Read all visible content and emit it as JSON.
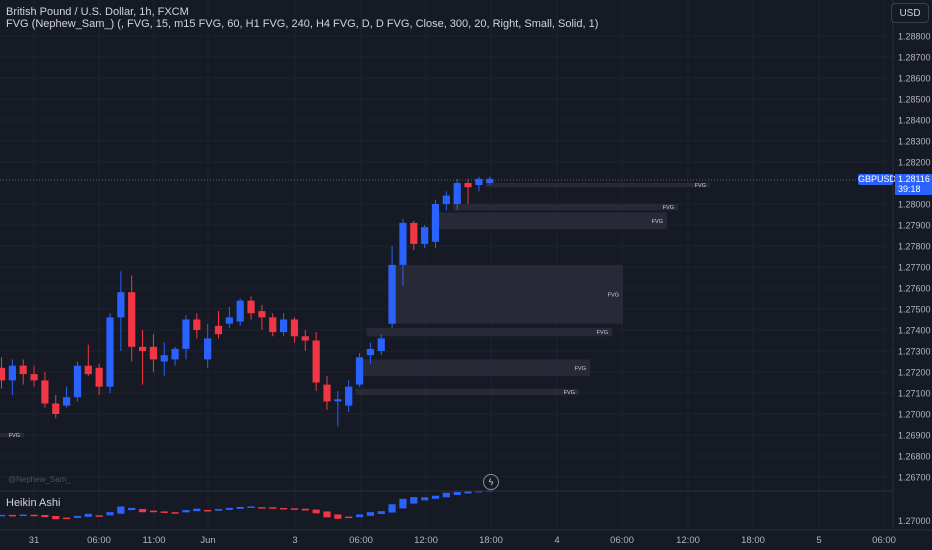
{
  "header": {
    "symbol_title": "British Pound / U.S. Dollar, 1h, FXCM",
    "indicator_legend": "FVG (Nephew_Sam_) (, FVG, 15, m15 FVG, 60, H1 FVG, 240, H4 FVG, D, D FVG, Close, 300, 20, Right, Small, Solid, 1)",
    "currency_button": "USD"
  },
  "price_scale": {
    "ticks": [
      "1.28800",
      "1.28700",
      "1.28600",
      "1.28500",
      "1.28400",
      "1.28300",
      "1.28200",
      "1.28000",
      "1.27900",
      "1.27800",
      "1.27700",
      "1.27600",
      "1.27500",
      "1.27400",
      "1.27300",
      "1.27200",
      "1.27100",
      "1.27000",
      "1.26900",
      "1.26800",
      "1.26700"
    ],
    "symbol_badge": "GBPUSD",
    "last_price": "1.28116",
    "countdown": "39:18",
    "sub_tick": "1.27000"
  },
  "time_axis": {
    "labels": [
      "31",
      "06:00",
      "11:00",
      "Jun",
      "3",
      "06:00",
      "12:00",
      "18:00",
      "4",
      "06:00",
      "12:00",
      "18:00",
      "5",
      "06:00"
    ]
  },
  "subchart": {
    "title": "Heikin Ashi"
  },
  "watermark": "@Nephew_Sam_",
  "fvg_label": "FVG",
  "colors": {
    "background": "#161a25",
    "bull": "#2962ff",
    "bear": "#f23645",
    "fvg_zone": "#2a2e39",
    "grid": "#1e2230"
  },
  "chart_data": {
    "type": "candlestick",
    "symbol": "GBPUSD",
    "timeframe": "1h",
    "y_range": [
      1.2665,
      1.2895
    ],
    "candles": [
      {
        "o": 1.2722,
        "h": 1.2727,
        "l": 1.2712,
        "c": 1.2716
      },
      {
        "o": 1.2716,
        "h": 1.2726,
        "l": 1.2709,
        "c": 1.2723
      },
      {
        "o": 1.2723,
        "h": 1.2726,
        "l": 1.2714,
        "c": 1.2719
      },
      {
        "o": 1.2719,
        "h": 1.2723,
        "l": 1.2713,
        "c": 1.2716
      },
      {
        "o": 1.2716,
        "h": 1.272,
        "l": 1.2703,
        "c": 1.2705
      },
      {
        "o": 1.2705,
        "h": 1.2709,
        "l": 1.2698,
        "c": 1.27
      },
      {
        "o": 1.2704,
        "h": 1.2713,
        "l": 1.2703,
        "c": 1.2708
      },
      {
        "o": 1.2708,
        "h": 1.2725,
        "l": 1.2706,
        "c": 1.2723
      },
      {
        "o": 1.2723,
        "h": 1.2733,
        "l": 1.2718,
        "c": 1.2719
      },
      {
        "o": 1.2722,
        "h": 1.2724,
        "l": 1.2709,
        "c": 1.2713
      },
      {
        "o": 1.2713,
        "h": 1.2748,
        "l": 1.271,
        "c": 1.2746
      },
      {
        "o": 1.2746,
        "h": 1.2768,
        "l": 1.273,
        "c": 1.2758
      },
      {
        "o": 1.2758,
        "h": 1.2766,
        "l": 1.2725,
        "c": 1.2732
      },
      {
        "o": 1.2732,
        "h": 1.274,
        "l": 1.2714,
        "c": 1.273
      },
      {
        "o": 1.2732,
        "h": 1.2738,
        "l": 1.272,
        "c": 1.2726
      },
      {
        "o": 1.2725,
        "h": 1.2734,
        "l": 1.2718,
        "c": 1.2728
      },
      {
        "o": 1.2726,
        "h": 1.2732,
        "l": 1.2723,
        "c": 1.2731
      },
      {
        "o": 1.2731,
        "h": 1.2747,
        "l": 1.2726,
        "c": 1.2745
      },
      {
        "o": 1.2745,
        "h": 1.2748,
        "l": 1.2736,
        "c": 1.274
      },
      {
        "o": 1.2726,
        "h": 1.2743,
        "l": 1.2722,
        "c": 1.2736
      },
      {
        "o": 1.2742,
        "h": 1.2749,
        "l": 1.2736,
        "c": 1.2738
      },
      {
        "o": 1.2743,
        "h": 1.2751,
        "l": 1.2741,
        "c": 1.2746
      },
      {
        "o": 1.2744,
        "h": 1.2755,
        "l": 1.2742,
        "c": 1.2754
      },
      {
        "o": 1.2754,
        "h": 1.2756,
        "l": 1.2745,
        "c": 1.2748
      },
      {
        "o": 1.2749,
        "h": 1.2752,
        "l": 1.274,
        "c": 1.2746
      },
      {
        "o": 1.2746,
        "h": 1.2748,
        "l": 1.2737,
        "c": 1.2739
      },
      {
        "o": 1.2739,
        "h": 1.2748,
        "l": 1.2737,
        "c": 1.2745
      },
      {
        "o": 1.2745,
        "h": 1.2746,
        "l": 1.2734,
        "c": 1.2737
      },
      {
        "o": 1.2737,
        "h": 1.274,
        "l": 1.273,
        "c": 1.2735
      },
      {
        "o": 1.2735,
        "h": 1.2739,
        "l": 1.2711,
        "c": 1.2715
      },
      {
        "o": 1.2714,
        "h": 1.2718,
        "l": 1.2702,
        "c": 1.2706
      },
      {
        "o": 1.2706,
        "h": 1.2711,
        "l": 1.2694,
        "c": 1.2707
      },
      {
        "o": 1.2704,
        "h": 1.2716,
        "l": 1.2701,
        "c": 1.2713
      },
      {
        "o": 1.2714,
        "h": 1.2729,
        "l": 1.2713,
        "c": 1.2727
      },
      {
        "o": 1.2728,
        "h": 1.2734,
        "l": 1.2724,
        "c": 1.2731
      },
      {
        "o": 1.273,
        "h": 1.2738,
        "l": 1.2728,
        "c": 1.2736
      },
      {
        "o": 1.2743,
        "h": 1.278,
        "l": 1.2741,
        "c": 1.2771
      },
      {
        "o": 1.2771,
        "h": 1.2793,
        "l": 1.2761,
        "c": 1.2791
      },
      {
        "o": 1.2791,
        "h": 1.2792,
        "l": 1.2778,
        "c": 1.2781
      },
      {
        "o": 1.2781,
        "h": 1.279,
        "l": 1.2779,
        "c": 1.2789
      },
      {
        "o": 1.2782,
        "h": 1.2802,
        "l": 1.2779,
        "c": 1.28
      },
      {
        "o": 1.28,
        "h": 1.2806,
        "l": 1.2797,
        "c": 1.2804
      },
      {
        "o": 1.28,
        "h": 1.2812,
        "l": 1.2797,
        "c": 1.281
      },
      {
        "o": 1.281,
        "h": 1.2812,
        "l": 1.28,
        "c": 1.2808
      },
      {
        "o": 1.2809,
        "h": 1.2813,
        "l": 1.2806,
        "c": 1.2812
      },
      {
        "o": 1.281,
        "h": 1.2813,
        "l": 1.2809,
        "c": 1.2812
      }
    ],
    "fvg_zones": [
      {
        "from_index": 45,
        "y1": 1.281,
        "y2": 1.2808
      },
      {
        "from_index": 42,
        "y1": 1.28,
        "y2": 1.2797
      },
      {
        "from_index": 40,
        "y1": 1.2796,
        "y2": 1.2788
      },
      {
        "from_index": 36,
        "y1": 1.2771,
        "y2": 1.2743
      },
      {
        "from_index": 34,
        "y1": 1.2741,
        "y2": 1.2737
      },
      {
        "from_index": 33,
        "y1": 1.2726,
        "y2": 1.2718
      },
      {
        "from_index": 33,
        "y1": 1.2712,
        "y2": 1.2709
      },
      {
        "from_index": 0,
        "y1": 1.2691,
        "y2": 1.2689
      }
    ]
  }
}
